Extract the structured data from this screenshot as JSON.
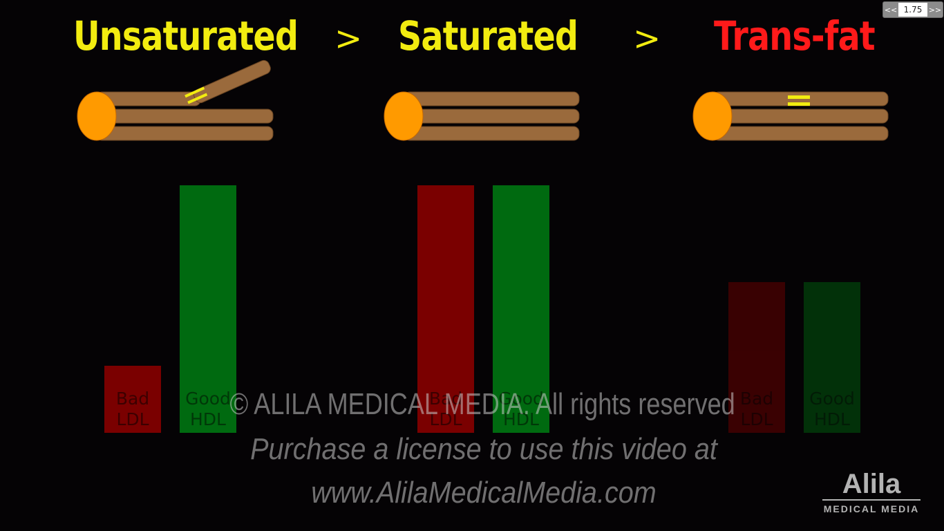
{
  "player": {
    "prev_label": "<<",
    "speed_value": "1.75",
    "next_label": ">>"
  },
  "headings": {
    "unsaturated": "Unsaturated",
    "saturated": "Saturated",
    "trans_fat": "Trans-fat",
    "gt_1": ">",
    "gt_2": ">"
  },
  "colors": {
    "yellow_heading": "#f2ec10",
    "red_heading": "#ff1a1a",
    "chain_brown": "#9a6a3c",
    "head_orange": "#ff9a00",
    "double_bond": "#f2ec10",
    "ldl_red": "#7a0000",
    "hdl_green": "#006a10"
  },
  "chart_data": {
    "type": "bar",
    "title": "",
    "categories": [
      "Unsaturated",
      "Saturated",
      "Trans-fat"
    ],
    "series": [
      {
        "name": "Bad LDL",
        "label_line1": "Bad",
        "label_line2": "LDL",
        "values": [
          27,
          100,
          61
        ]
      },
      {
        "name": "Good HDL",
        "label_line1": "Good",
        "label_line2": "HDL",
        "values": [
          100,
          100,
          61
        ]
      }
    ],
    "ylim": [
      0,
      100
    ],
    "xlabel": "",
    "ylabel": ""
  },
  "watermark": {
    "line1": "© ALILA MEDICAL MEDIA. All rights reserved",
    "line2": "Purchase a license to use this video at",
    "line3": "www.AlilaMedicalMedia.com"
  },
  "logo": {
    "name": "Alila",
    "sub": "MEDICAL MEDIA"
  }
}
